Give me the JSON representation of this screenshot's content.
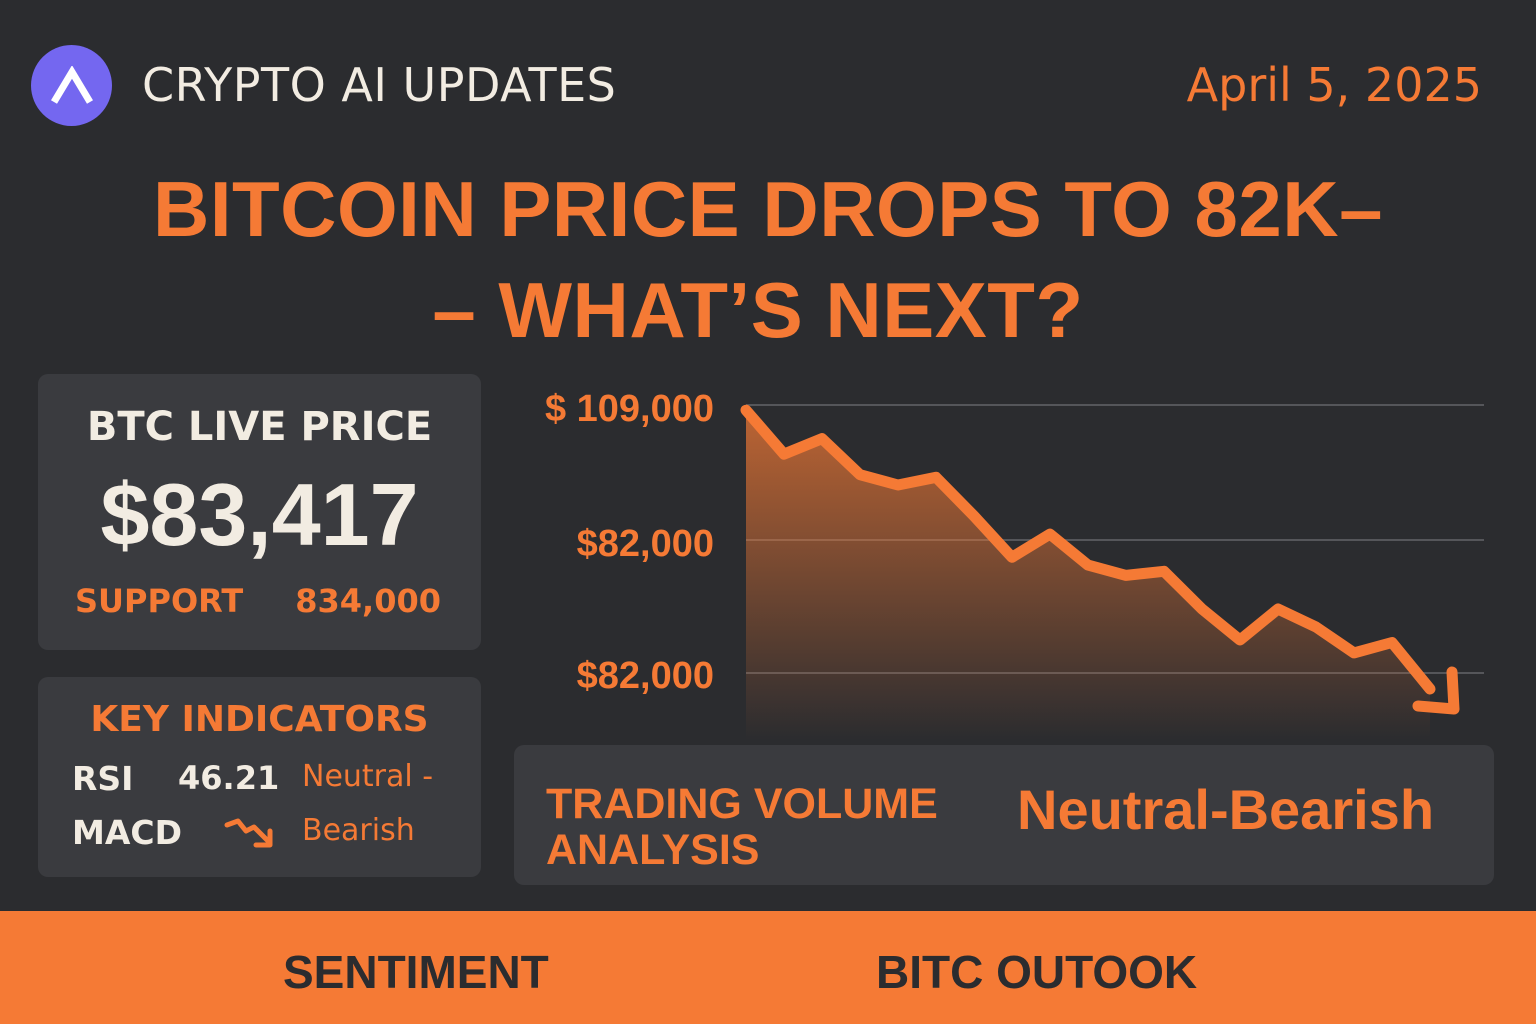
{
  "header": {
    "brand": "CRYPTO AI UPDATES",
    "date": "April 5, 2025",
    "logo_icon": "caret-up-icon",
    "logo_color": "#7467f0"
  },
  "headline": {
    "line1": "BITCOIN PRICE DROPS TO 82K–",
    "line2": "– WHAT’S NEXT?"
  },
  "price_card": {
    "label": "BTC LIVE PRICE",
    "value": "$83,417",
    "support_label": "SUPPORT",
    "support_value": "834,000"
  },
  "indicators": {
    "title": "KEY INDICATORS",
    "rows": [
      {
        "name": "RSI",
        "value": "46.21",
        "status": "Neutral -"
      },
      {
        "name": "MACD",
        "value": "",
        "status": "Bearish",
        "icon": "trend-down-arrow-icon"
      }
    ]
  },
  "chart_data": {
    "type": "area",
    "title": "",
    "y_ticks": [
      "$ 109,000",
      "$82,000",
      "$82,000"
    ],
    "values": [
      109000,
      100500,
      103500,
      96500,
      94500,
      96000,
      88500,
      80500,
      85000,
      79000,
      77000,
      77800,
      70500,
      64500,
      70500,
      67000,
      62000,
      64000,
      55000
    ],
    "trend": "down",
    "ylim": [
      49000,
      110000
    ],
    "grid": true
  },
  "volume": {
    "title": "TRADING VOLUME ANALYSIS",
    "status": "Neutral-Bearish"
  },
  "footer": {
    "left": "SENTIMENT",
    "right": "BITC OUTOOK"
  },
  "colors": {
    "accent": "#f57a35",
    "background": "#2b2c2f",
    "card": "#3a3b3f",
    "text": "#f2ece2"
  }
}
